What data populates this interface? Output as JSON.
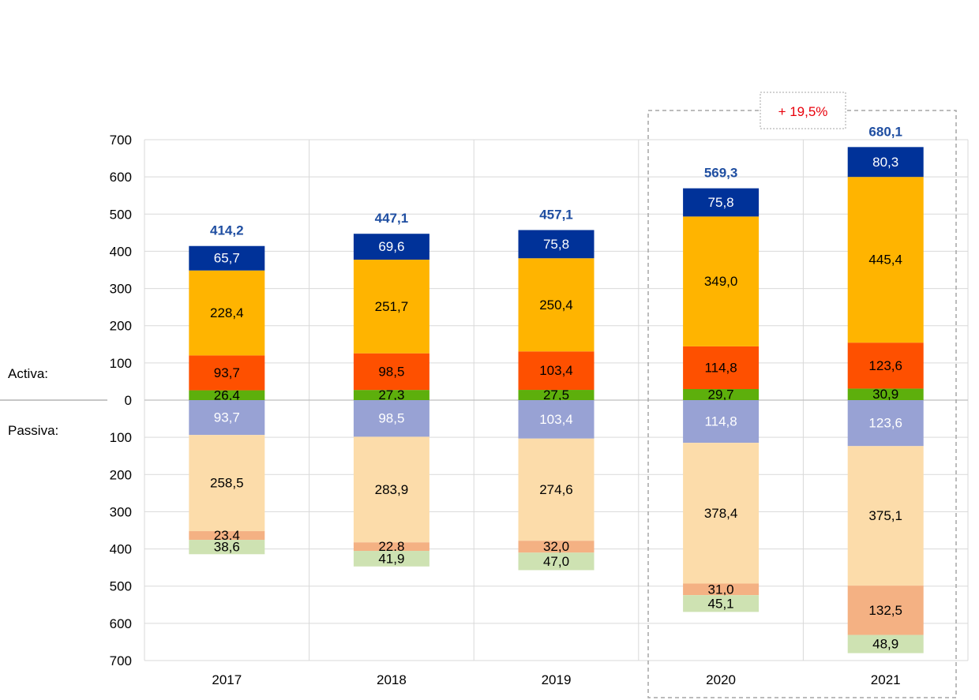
{
  "chart_data": {
    "type": "bar",
    "stacked": true,
    "diverging": true,
    "categories": [
      "2017",
      "2018",
      "2019",
      "2020",
      "2021"
    ],
    "y_ticks_up": [
      "700",
      "600",
      "500",
      "400",
      "300",
      "200",
      "100",
      "0"
    ],
    "y_ticks_down": [
      "100",
      "200",
      "300",
      "400",
      "500",
      "600",
      "700"
    ],
    "ylim": [
      -700,
      700
    ],
    "grid": true,
    "side_labels": {
      "assets": "Activa:",
      "liabilities": "Passiva:"
    },
    "growth_label": "+ 19,5%",
    "totals": [
      {
        "value": 414.2,
        "label": "414,2"
      },
      {
        "value": 447.1,
        "label": "447,1"
      },
      {
        "value": 457.1,
        "label": "457,1"
      },
      {
        "value": 569.3,
        "label": "569,3"
      },
      {
        "value": 680.1,
        "label": "680,1"
      }
    ],
    "assets_series": [
      {
        "color": "#5daf0c",
        "label_color": "#000000",
        "values": [
          26.4,
          27.3,
          27.5,
          29.7,
          30.9
        ],
        "labels": [
          "26,4",
          "27,3",
          "27,5",
          "29,7",
          "30,9"
        ]
      },
      {
        "color": "#fe5000",
        "label_color": "#000000",
        "values": [
          93.7,
          98.5,
          103.4,
          114.8,
          123.6
        ],
        "labels": [
          "93,7",
          "98,5",
          "103,4",
          "114,8",
          "123,6"
        ]
      },
      {
        "color": "#ffb400",
        "label_color": "#000000",
        "values": [
          228.4,
          251.7,
          250.4,
          349.0,
          445.4
        ],
        "labels": [
          "228,4",
          "251,7",
          "250,4",
          "349,0",
          "445,4"
        ]
      },
      {
        "color": "#003299",
        "label_color": "#ffffff",
        "values": [
          65.7,
          69.6,
          75.8,
          75.8,
          80.3
        ],
        "labels": [
          "65,7",
          "69,6",
          "75,8",
          "75,8",
          "80,3"
        ]
      }
    ],
    "liabilities_series": [
      {
        "color": "#98a2d4",
        "label_color": "#ffffff",
        "values": [
          93.7,
          98.5,
          103.4,
          114.8,
          123.6
        ],
        "labels": [
          "93,7",
          "98,5",
          "103,4",
          "114,8",
          "123,6"
        ]
      },
      {
        "color": "#fcdcaa",
        "label_color": "#000000",
        "values": [
          258.5,
          283.9,
          274.6,
          378.4,
          375.1
        ],
        "labels": [
          "258,5",
          "283,9",
          "274,6",
          "378,4",
          "375,1"
        ]
      },
      {
        "color": "#f4b183",
        "label_color": "#000000",
        "values": [
          23.4,
          22.8,
          32.0,
          31.0,
          132.5
        ],
        "labels": [
          "23,4",
          "22,8",
          "32,0",
          "31,0",
          "132,5"
        ]
      },
      {
        "color": "#cee2b2",
        "label_color": "#000000",
        "values": [
          38.6,
          41.9,
          47.0,
          45.1,
          48.9
        ],
        "labels": [
          "38,6",
          "41,9",
          "47,0",
          "45,1",
          "48,9"
        ]
      }
    ]
  }
}
